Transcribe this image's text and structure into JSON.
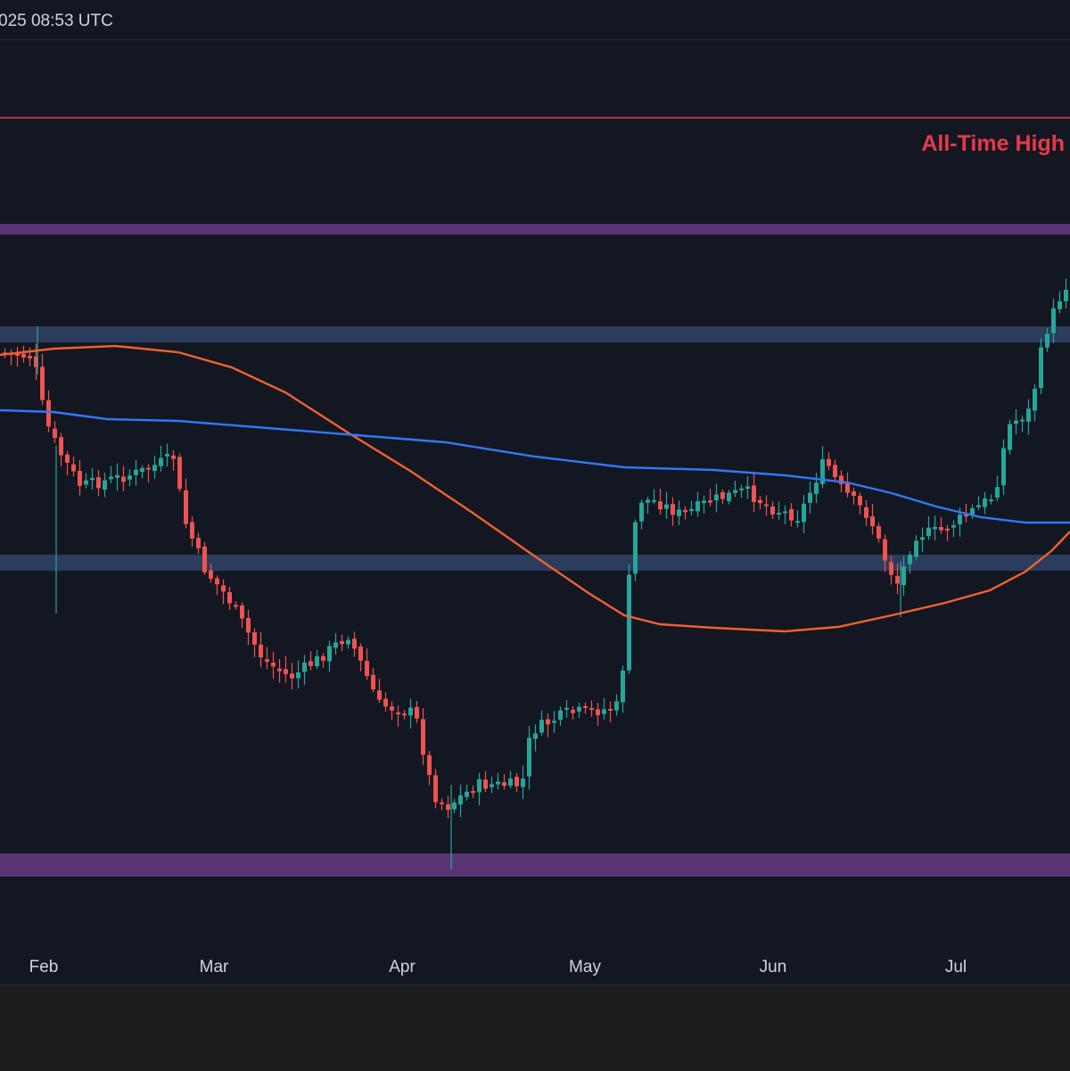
{
  "header": {
    "timestamp": "025 08:53 UTC"
  },
  "colors": {
    "background": "#131722",
    "up_candle": "#26a69a",
    "down_candle": "#ef5350",
    "ma_fast": "#f0622d",
    "ma_slow": "#3179f5",
    "ath_line": "#e8394a",
    "purple_zone": "#5a3374",
    "blue_zone": "#2b3c5c"
  },
  "chart_data": {
    "type": "candlestick",
    "title": "",
    "xlabel": "",
    "ylabel": "",
    "x_ticks": [
      "Feb",
      "Mar",
      "Apr",
      "May",
      "Jun",
      "Jul"
    ],
    "annotations": [
      {
        "label": "All-Time High",
        "kind": "horizontal-line",
        "color": "#e8394a"
      }
    ],
    "zones": [
      {
        "kind": "resistance",
        "color": "#5a3374"
      },
      {
        "kind": "resistance",
        "color": "#2b3c5c"
      },
      {
        "kind": "support",
        "color": "#2b3c5c"
      },
      {
        "kind": "support",
        "color": "#5a3374"
      }
    ],
    "moving_averages": [
      {
        "color": "#f0622d",
        "trend": "falling-then-rising"
      },
      {
        "color": "#3179f5",
        "trend": "flat-slightly-falling"
      }
    ],
    "grid": false,
    "legend": "none"
  }
}
